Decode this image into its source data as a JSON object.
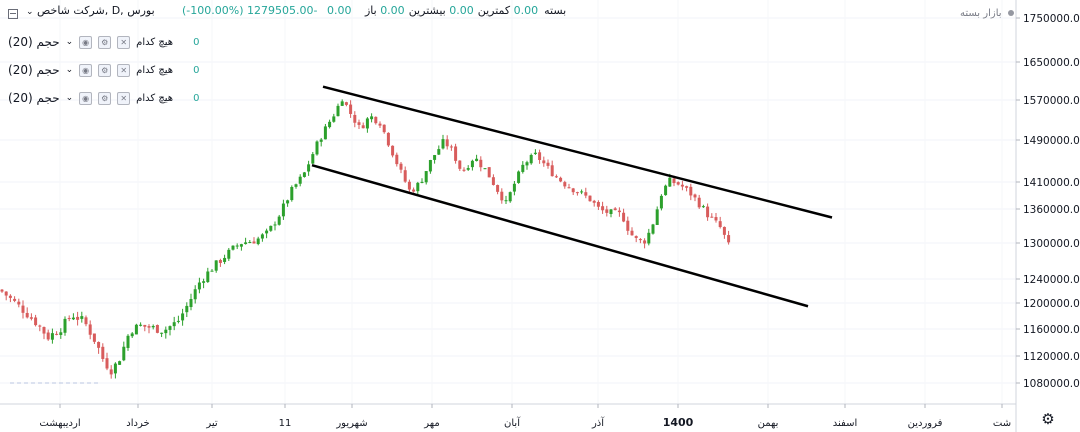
{
  "header": {
    "symbol": "شرکت شاخص, D, بورس",
    "open_label": "باز",
    "high_label": "بیشترین",
    "high_value": "0.00",
    "low_label": "کمترین",
    "low_value": "0.00",
    "close_label": "بسته",
    "close_value": "0.00",
    "change_value": "1279505.00-",
    "change_pct": "(-100.00%)",
    "zero_value": "0.00"
  },
  "legend": [
    {
      "title": "حجم (20)",
      "none_label": "هیچ کدام",
      "value": "0"
    },
    {
      "title": "حجم (20)",
      "none_label": "هیچ کدام",
      "value": "0"
    },
    {
      "title": "حجم (20)",
      "none_label": "هیچ کدام",
      "value": "0"
    }
  ],
  "market_status": "بازار بسته",
  "colors": {
    "up": "#26a69a",
    "down": "#ef5350",
    "candle_up": "#2ca02c",
    "candle_down": "#d85c5c",
    "channel": "#000000",
    "axis_text": "#131722"
  },
  "icons": {
    "settings": "gear-icon",
    "collapse": "minus-square-icon",
    "eye": "eye-icon",
    "gear": "gear-icon",
    "close": "close-icon"
  },
  "chart_data": {
    "type": "candlestick",
    "timeframe": "D",
    "y_ticks": [
      1750000,
      1650000,
      1570000,
      1490000,
      1410000,
      1360000,
      1300000,
      1240000,
      1200000,
      1160000,
      1120000,
      1080000
    ],
    "y_tick_labels": [
      "1750000.00",
      "1650000.00",
      "1570000.00",
      "1490000.00",
      "1410000.00",
      "1360000.00",
      "1300000.00",
      "1240000.00",
      "1200000.00",
      "1160000.00",
      "1120000.00",
      "1080000.00"
    ],
    "x_tick_labels": [
      "اردیبهشت",
      "خرداد",
      "تیر",
      "11",
      "شهریور",
      "مهر",
      "آبان",
      "آذر",
      "1400",
      "بهمن",
      "اسفند",
      "فروردین",
      "شت"
    ],
    "close_path": [
      [
        0,
        1222000
      ],
      [
        12,
        1205000
      ],
      [
        24,
        1188000
      ],
      [
        36,
        1170000
      ],
      [
        48,
        1148000
      ],
      [
        60,
        1160000
      ],
      [
        72,
        1182000
      ],
      [
        84,
        1172000
      ],
      [
        96,
        1140000
      ],
      [
        104,
        1112000
      ],
      [
        112,
        1098000
      ],
      [
        120,
        1118000
      ],
      [
        130,
        1158000
      ],
      [
        140,
        1165000
      ],
      [
        152,
        1162000
      ],
      [
        164,
        1158000
      ],
      [
        178,
        1172000
      ],
      [
        188,
        1198000
      ],
      [
        200,
        1236000
      ],
      [
        212,
        1258000
      ],
      [
        226,
        1280000
      ],
      [
        240,
        1300000
      ],
      [
        256,
        1305000
      ],
      [
        268,
        1318000
      ],
      [
        280,
        1352000
      ],
      [
        292,
        1395000
      ],
      [
        304,
        1425000
      ],
      [
        316,
        1478000
      ],
      [
        326,
        1515000
      ],
      [
        336,
        1548000
      ],
      [
        342,
        1575000
      ],
      [
        350,
        1545000
      ],
      [
        360,
        1512000
      ],
      [
        370,
        1538000
      ],
      [
        380,
        1525000
      ],
      [
        390,
        1478000
      ],
      [
        400,
        1432000
      ],
      [
        410,
        1392000
      ],
      [
        420,
        1408000
      ],
      [
        432,
        1455000
      ],
      [
        444,
        1488000
      ],
      [
        452,
        1470000
      ],
      [
        462,
        1428000
      ],
      [
        474,
        1458000
      ],
      [
        486,
        1432000
      ],
      [
        496,
        1400000
      ],
      [
        506,
        1370000
      ],
      [
        514,
        1405000
      ],
      [
        524,
        1445000
      ],
      [
        536,
        1462000
      ],
      [
        546,
        1440000
      ],
      [
        556,
        1420000
      ],
      [
        566,
        1405000
      ],
      [
        578,
        1392000
      ],
      [
        590,
        1378000
      ],
      [
        600,
        1358000
      ],
      [
        612,
        1352000
      ],
      [
        622,
        1350000
      ],
      [
        630,
        1318000
      ],
      [
        638,
        1302000
      ],
      [
        646,
        1305000
      ],
      [
        654,
        1340000
      ],
      [
        662,
        1392000
      ],
      [
        670,
        1412000
      ],
      [
        680,
        1405000
      ],
      [
        690,
        1390000
      ],
      [
        700,
        1368000
      ],
      [
        710,
        1345000
      ],
      [
        720,
        1328000
      ],
      [
        728,
        1298000
      ],
      [
        732,
        1279505
      ]
    ],
    "channel_upper": [
      [
        323,
        1598000
      ],
      [
        832,
        1345000
      ]
    ],
    "channel_lower": [
      [
        312,
        1442000
      ],
      [
        808,
        1195000
      ]
    ],
    "last_close": 1279505
  }
}
